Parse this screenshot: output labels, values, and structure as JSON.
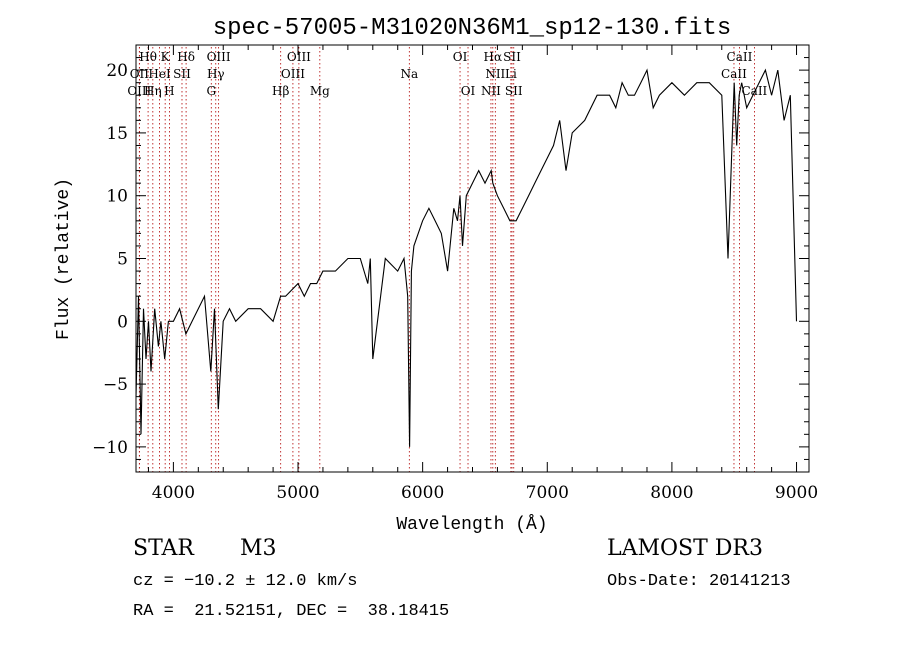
{
  "chart_data": {
    "type": "line",
    "title": "spec-57005-M31020N36M1_sp12-130.fits",
    "xlabel": "Wavelength (Å)",
    "ylabel": "Flux (relative)",
    "xlim": [
      3700,
      9100
    ],
    "ylim": [
      -12,
      22
    ],
    "x_ticks": [
      4000,
      5000,
      6000,
      7000,
      8000,
      9000
    ],
    "y_ticks": [
      -10,
      -5,
      0,
      5,
      10,
      15,
      20
    ],
    "series": [
      {
        "name": "flux",
        "x": [
          3700,
          3720,
          3740,
          3760,
          3780,
          3800,
          3820,
          3850,
          3880,
          3900,
          3930,
          3960,
          4000,
          4050,
          4100,
          4150,
          4200,
          4250,
          4300,
          4330,
          4360,
          4400,
          4450,
          4500,
          4600,
          4700,
          4800,
          4860,
          4900,
          5000,
          5050,
          5100,
          5150,
          5200,
          5300,
          5400,
          5500,
          5560,
          5580,
          5600,
          5700,
          5800,
          5850,
          5880,
          5895,
          5910,
          5930,
          6000,
          6050,
          6100,
          6150,
          6200,
          6250,
          6280,
          6300,
          6320,
          6350,
          6400,
          6450,
          6500,
          6550,
          6563,
          6600,
          6650,
          6700,
          6750,
          6800,
          6850,
          6900,
          6950,
          7000,
          7050,
          7100,
          7150,
          7200,
          7300,
          7400,
          7500,
          7550,
          7600,
          7650,
          7700,
          7750,
          7800,
          7850,
          7900,
          8000,
          8100,
          8200,
          8300,
          8400,
          8450,
          8500,
          8520,
          8540,
          8560,
          8600,
          8650,
          8700,
          8750,
          8800,
          8850,
          8900,
          8950,
          9000
        ],
        "y": [
          -6,
          2,
          -9,
          1,
          -3,
          0,
          -4,
          1,
          -2,
          0,
          -3,
          0,
          0,
          1,
          -1,
          0,
          1,
          2,
          -4,
          1,
          -7,
          0,
          1,
          0,
          1,
          1,
          0,
          2,
          2,
          3,
          2,
          3,
          3,
          4,
          4,
          5,
          5,
          3,
          5,
          -3,
          5,
          4,
          5,
          2,
          -10,
          4,
          6,
          8,
          9,
          8,
          7,
          4,
          9,
          8,
          10,
          6,
          10,
          11,
          12,
          11,
          12,
          11,
          10,
          9,
          8,
          8,
          9,
          10,
          11,
          12,
          13,
          14,
          16,
          12,
          15,
          16,
          18,
          18,
          17,
          19,
          18,
          18,
          19,
          20,
          17,
          18,
          19,
          18,
          19,
          19,
          18,
          5,
          19,
          14,
          18,
          19,
          17,
          18,
          19,
          20,
          18,
          20,
          16,
          18,
          0
        ]
      }
    ],
    "lines_top": [
      {
        "label": "Hθ",
        "x": 3797
      },
      {
        "label": "K",
        "x": 3934
      },
      {
        "label": "Hδ",
        "x": 4102
      },
      {
        "label": "OIII",
        "x": 4363
      },
      {
        "label": "OIII",
        "x": 5007
      },
      {
        "label": "OI",
        "x": 6300
      },
      {
        "label": "Hα",
        "x": 6563
      },
      {
        "label": "SII",
        "x": 6717
      },
      {
        "label": "CaII",
        "x": 8542
      }
    ],
    "lines_mid": [
      {
        "label": "OII",
        "x": 3727
      },
      {
        "label": "HeI",
        "x": 3889
      },
      {
        "label": "SII",
        "x": 4069
      },
      {
        "label": "Hγ",
        "x": 4340
      },
      {
        "label": "OIII",
        "x": 4959
      },
      {
        "label": "Na",
        "x": 5893
      },
      {
        "label": "NII",
        "x": 6583
      },
      {
        "label": "Li",
        "x": 6708
      },
      {
        "label": "CaII",
        "x": 8498
      }
    ],
    "lines_low": [
      {
        "label": "OIII",
        "x": 3727
      },
      {
        "label": "Hη",
        "x": 3835
      },
      {
        "label": "H",
        "x": 3968
      },
      {
        "label": "G",
        "x": 4304
      },
      {
        "label": "Hβ",
        "x": 4861
      },
      {
        "label": "Mg",
        "x": 5175
      },
      {
        "label": "OI",
        "x": 6364
      },
      {
        "label": "NII",
        "x": 6548
      },
      {
        "label": "SII",
        "x": 6731
      },
      {
        "label": "CaII",
        "x": 8662
      }
    ]
  },
  "info": {
    "object_type": "STAR",
    "object_class": "M3",
    "survey": "LAMOST DR3",
    "redshift": "cz = −10.2 ± 12.0 km/s",
    "obs_date": "Obs-Date: 20141213",
    "coords": "RA =  21.52151, DEC =  38.18415"
  }
}
